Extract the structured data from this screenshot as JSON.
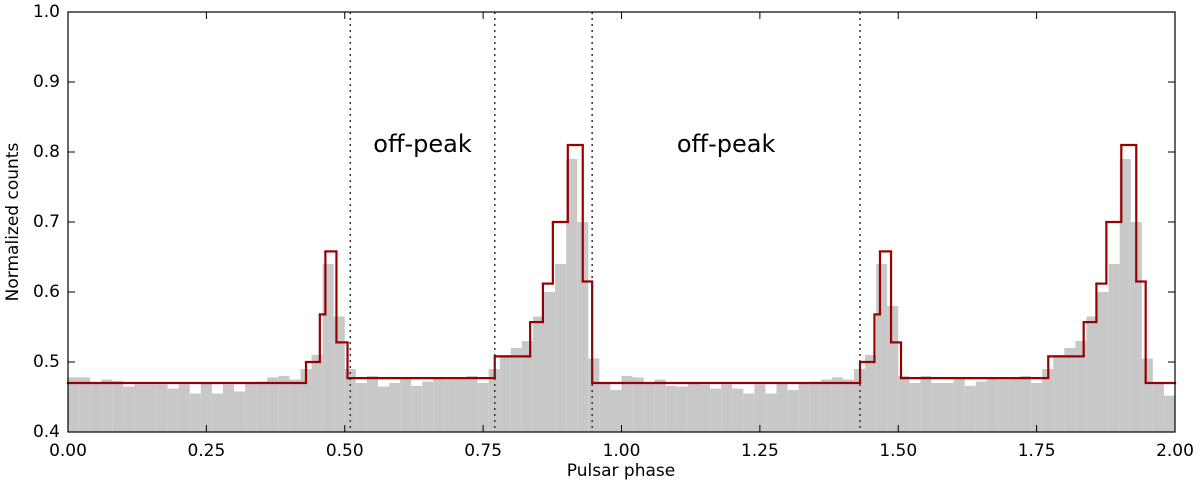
{
  "chart_data": {
    "type": "histogram",
    "xlabel": "Pulsar phase",
    "ylabel": "Normalized counts",
    "xlim": [
      0,
      2
    ],
    "ylim": [
      0.4,
      1.0
    ],
    "xticks": [
      {
        "value": 0,
        "label": "0.00"
      },
      {
        "value": 0.25,
        "label": "0.25"
      },
      {
        "value": 0.5,
        "label": "0.50"
      },
      {
        "value": 0.75,
        "label": "0.75"
      },
      {
        "value": 1,
        "label": "1.00"
      },
      {
        "value": 1.25,
        "label": "1.25"
      },
      {
        "value": 1.5,
        "label": "1.50"
      },
      {
        "value": 1.75,
        "label": "1.75"
      },
      {
        "value": 2,
        "label": "2.00"
      }
    ],
    "yticks": [
      0.4,
      0.5,
      0.6,
      0.7,
      0.8,
      0.9,
      {
        "value": 1,
        "label": "1.0"
      }
    ],
    "bins": [
      0,
      0.02,
      0.04,
      0.06,
      0.08,
      0.1,
      0.12,
      0.14,
      0.16,
      0.18,
      0.2,
      0.22,
      0.24,
      0.26,
      0.28,
      0.3,
      0.32,
      0.34,
      0.36,
      0.38,
      0.4,
      0.42,
      0.44,
      0.46,
      0.48,
      0.5,
      0.52,
      0.54,
      0.56,
      0.58,
      0.6,
      0.62,
      0.64,
      0.66,
      0.68,
      0.7,
      0.72,
      0.74,
      0.76,
      0.78,
      0.8,
      0.82,
      0.84,
      0.86,
      0.88,
      0.9,
      0.92,
      0.94,
      0.96,
      0.98,
      1,
      1.02,
      1.04,
      1.06,
      1.08,
      1.1,
      1.12,
      1.14,
      1.16,
      1.18,
      1.2,
      1.22,
      1.24,
      1.26,
      1.28,
      1.3,
      1.32,
      1.34,
      1.36,
      1.38,
      1.4,
      1.42,
      1.44,
      1.46,
      1.48,
      1.5,
      1.52,
      1.54,
      1.56,
      1.58,
      1.6,
      1.62,
      1.64,
      1.66,
      1.68,
      1.7,
      1.72,
      1.74,
      1.76,
      1.78,
      1.8,
      1.82,
      1.84,
      1.86,
      1.88,
      1.9,
      1.92,
      1.94,
      1.96,
      1.98,
      2
    ],
    "values": [
      0.478,
      0.478,
      0.47,
      0.475,
      0.473,
      0.465,
      0.468,
      0.468,
      0.468,
      0.462,
      0.468,
      0.455,
      0.47,
      0.455,
      0.468,
      0.458,
      0.47,
      0.472,
      0.478,
      0.48,
      0.475,
      0.49,
      0.51,
      0.64,
      0.565,
      0.49,
      0.47,
      0.48,
      0.465,
      0.47,
      0.478,
      0.466,
      0.472,
      0.476,
      0.475,
      0.478,
      0.48,
      0.47,
      0.49,
      0.51,
      0.52,
      0.53,
      0.565,
      0.6,
      0.64,
      0.79,
      0.7,
      0.505,
      0.47,
      0.46,
      0.48,
      0.478,
      0.47,
      0.475,
      0.466,
      0.465,
      0.47,
      0.468,
      0.462,
      0.468,
      0.462,
      0.455,
      0.468,
      0.455,
      0.47,
      0.46,
      0.47,
      0.472,
      0.475,
      0.478,
      0.475,
      0.49,
      0.51,
      0.64,
      0.58,
      0.48,
      0.47,
      0.48,
      0.47,
      0.47,
      0.478,
      0.466,
      0.472,
      0.476,
      0.475,
      0.478,
      0.48,
      0.47,
      0.49,
      0.51,
      0.52,
      0.53,
      0.565,
      0.6,
      0.64,
      0.79,
      0.7,
      0.505,
      0.47,
      0.452
    ],
    "color": "#c8c8c8",
    "blocks": {
      "color": "#990000",
      "edges": [
        0,
        0.43,
        0.455,
        0.465,
        0.485,
        0.505,
        0.771,
        0.835,
        0.858,
        0.876,
        0.903,
        0.93,
        0.947,
        1.431,
        1.457,
        1.467,
        1.487,
        1.505,
        1.771,
        1.835,
        1.858,
        1.876,
        1.903,
        1.93,
        1.947,
        2
      ],
      "values": [
        0.47,
        0.5,
        0.568,
        0.658,
        0.528,
        0.477,
        0.508,
        0.557,
        0.612,
        0.7,
        0.81,
        0.615,
        0.47,
        0.5,
        0.568,
        0.658,
        0.528,
        0.477,
        0.508,
        0.557,
        0.612,
        0.7,
        0.81,
        0.615,
        0.47
      ]
    },
    "vlines": [
      0.51,
      0.771,
      0.947,
      1.431
    ],
    "annotations": [
      "off-peak",
      "off-peak"
    ]
  }
}
